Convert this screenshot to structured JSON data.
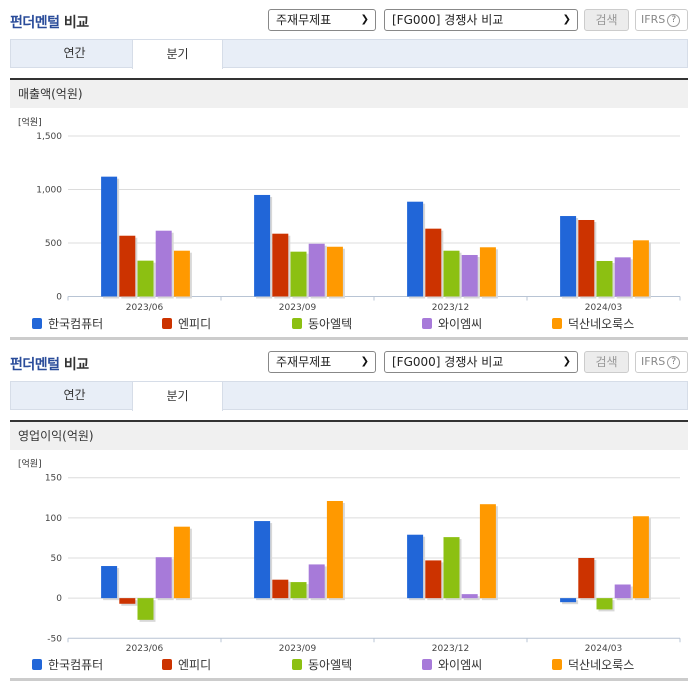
{
  "sections": [
    {
      "title_highlight": "펀더멘털",
      "title_rest": " 비교",
      "select1": {
        "value": "주재무제표"
      },
      "select2": {
        "value": "[FG000] 경쟁사 비교"
      },
      "search_label": "검색",
      "ifrs_label": "IFRS",
      "help_icon": "?",
      "tabs": [
        {
          "label": "연간",
          "active": false
        },
        {
          "label": "분기",
          "active": true
        }
      ],
      "subheader": "매출액(억원)",
      "unit_label": "[억원]"
    },
    {
      "title_highlight": "펀더멘털",
      "title_rest": " 비교",
      "select1": {
        "value": "주재무제표"
      },
      "select2": {
        "value": "[FG000] 경쟁사 비교"
      },
      "search_label": "검색",
      "ifrs_label": "IFRS",
      "help_icon": "?",
      "tabs": [
        {
          "label": "연간",
          "active": false
        },
        {
          "label": "분기",
          "active": true
        }
      ],
      "subheader": "영업이익(억원)",
      "unit_label": "[억원]"
    }
  ],
  "colors": {
    "한국컴퓨터": "#2166d8",
    "엔피디": "#cc3300",
    "동아엘텍": "#8cc012",
    "와이엠씨": "#a77ad9",
    "덕산네오룩스": "#ff9900",
    "title_accent": "#2a4c9a"
  },
  "chart_data": [
    {
      "type": "bar",
      "title": "매출액(억원)",
      "xlabel": "",
      "ylabel": "[억원]",
      "categories": [
        "2023/06",
        "2023/09",
        "2023/12",
        "2024/03"
      ],
      "yticks": [
        0,
        500,
        1000,
        1500
      ],
      "ytick_labels": [
        "0",
        "500",
        "1,000",
        "1,500"
      ],
      "ylim": [
        0,
        1500
      ],
      "grid": true,
      "legend_position": "bottom",
      "series": [
        {
          "name": "한국컴퓨터",
          "values": [
            1120,
            949,
            886,
            752
          ]
        },
        {
          "name": "엔피디",
          "values": [
            568,
            587,
            634,
            715
          ]
        },
        {
          "name": "동아엘텍",
          "values": [
            335,
            419,
            428,
            332
          ]
        },
        {
          "name": "와이엠씨",
          "values": [
            615,
            493,
            388,
            366
          ]
        },
        {
          "name": "덕산네오룩스",
          "values": [
            428,
            465,
            460,
            525
          ]
        }
      ]
    },
    {
      "type": "bar",
      "title": "영업이익(억원)",
      "xlabel": "",
      "ylabel": "[억원]",
      "categories": [
        "2023/06",
        "2023/09",
        "2023/12",
        "2024/03"
      ],
      "yticks": [
        -50,
        0,
        50,
        100,
        150
      ],
      "ytick_labels": [
        "-50",
        "0",
        "50",
        "100",
        "150"
      ],
      "ylim": [
        -50,
        150
      ],
      "grid": true,
      "legend_position": "bottom",
      "series": [
        {
          "name": "한국컴퓨터",
          "values": [
            40,
            96,
            79,
            -5
          ]
        },
        {
          "name": "엔피디",
          "values": [
            -7,
            23,
            47,
            50
          ]
        },
        {
          "name": "동아엘텍",
          "values": [
            -27,
            20,
            76,
            -14
          ]
        },
        {
          "name": "와이엠씨",
          "values": [
            51,
            42,
            5,
            17
          ]
        },
        {
          "name": "덕산네오룩스",
          "values": [
            89,
            121,
            117,
            102
          ]
        }
      ]
    }
  ]
}
